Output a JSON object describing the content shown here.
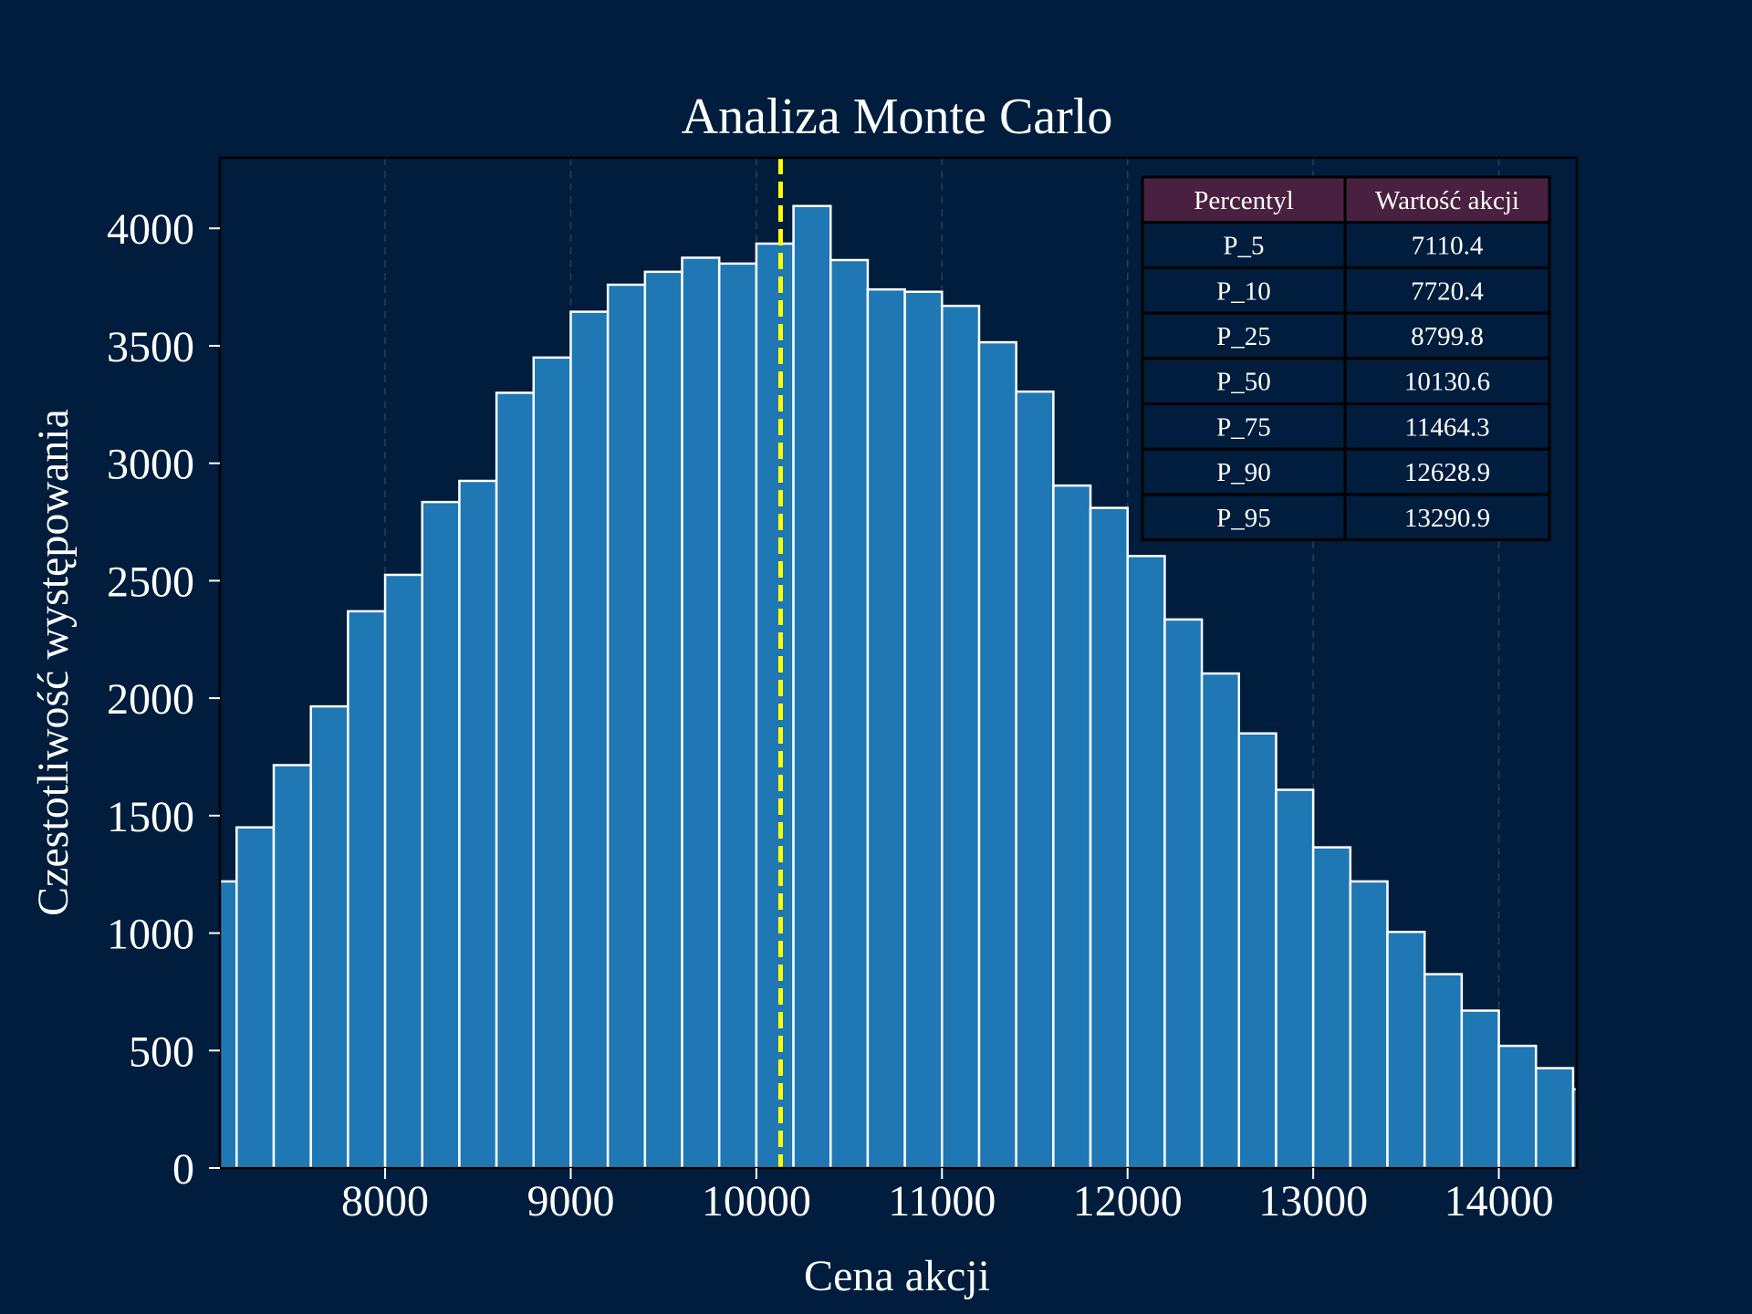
{
  "chart_data": {
    "type": "bar",
    "title": "Analiza Monte Carlo",
    "xlabel": "Cena akcji",
    "ylabel": "Czestotliwość występowania",
    "xlim": [
      7110,
      14420
    ],
    "ylim": [
      0,
      4300
    ],
    "xticks": [
      "8000",
      "9000",
      "10000",
      "11000",
      "12000",
      "13000",
      "14000"
    ],
    "yticks": [
      "0",
      "500",
      "1000",
      "1500",
      "2000",
      "2500",
      "3000",
      "3500",
      "4000"
    ],
    "grid": "vertical dashed",
    "bin_start": 7000,
    "bin_width": 200,
    "values": [
      1220,
      1450,
      1715,
      1965,
      2370,
      2525,
      2835,
      2925,
      3300,
      3450,
      3645,
      3760,
      3815,
      3875,
      3850,
      3935,
      4095,
      3865,
      3740,
      3730,
      3670,
      3515,
      3305,
      2905,
      2810,
      2605,
      2335,
      2105,
      1850,
      1610,
      1365,
      1220,
      1005,
      825,
      670,
      520,
      425,
      335
    ],
    "median_line": 10130.6,
    "colors": {
      "background": "#001d3d",
      "bar": "#1f77b4",
      "bar_edge": "#ffffff",
      "median": "#ffff00",
      "table_header": "#4a2040"
    },
    "table": {
      "headers": [
        "Percentyl",
        "Wartość akcji"
      ],
      "rows": [
        [
          "P_5",
          "7110.4"
        ],
        [
          "P_10",
          "7720.4"
        ],
        [
          "P_25",
          "8799.8"
        ],
        [
          "P_50",
          "10130.6"
        ],
        [
          "P_75",
          "11464.3"
        ],
        [
          "P_90",
          "12628.9"
        ],
        [
          "P_95",
          "13290.9"
        ]
      ]
    }
  }
}
